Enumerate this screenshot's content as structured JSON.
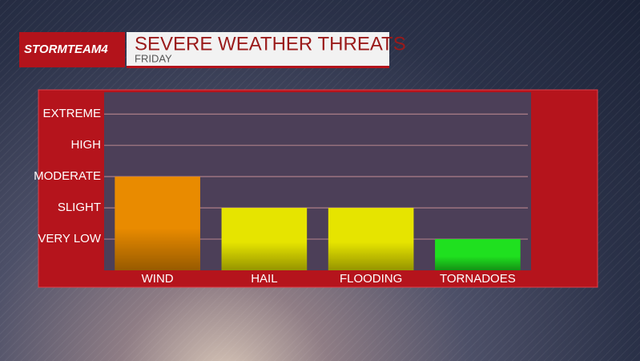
{
  "brand": "STORMTEAM4",
  "chart_data": {
    "type": "bar",
    "title": "SEVERE WEATHER THREATS",
    "subtitle": "FRIDAY",
    "categories": [
      "WIND",
      "HAIL",
      "FLOODING",
      "TORNADOES"
    ],
    "values": [
      3,
      2,
      2,
      1
    ],
    "colors": [
      "#e98b00",
      "#e6e400",
      "#e6e400",
      "#1fe01f"
    ],
    "ylim": [
      0,
      5.7
    ],
    "yticks": [
      {
        "value": 1,
        "label": "VERY LOW"
      },
      {
        "value": 2,
        "label": "SLIGHT"
      },
      {
        "value": 3,
        "label": "MODERATE"
      },
      {
        "value": 4,
        "label": "HIGH"
      },
      {
        "value": 5,
        "label": "EXTREME"
      }
    ],
    "grid": true
  }
}
